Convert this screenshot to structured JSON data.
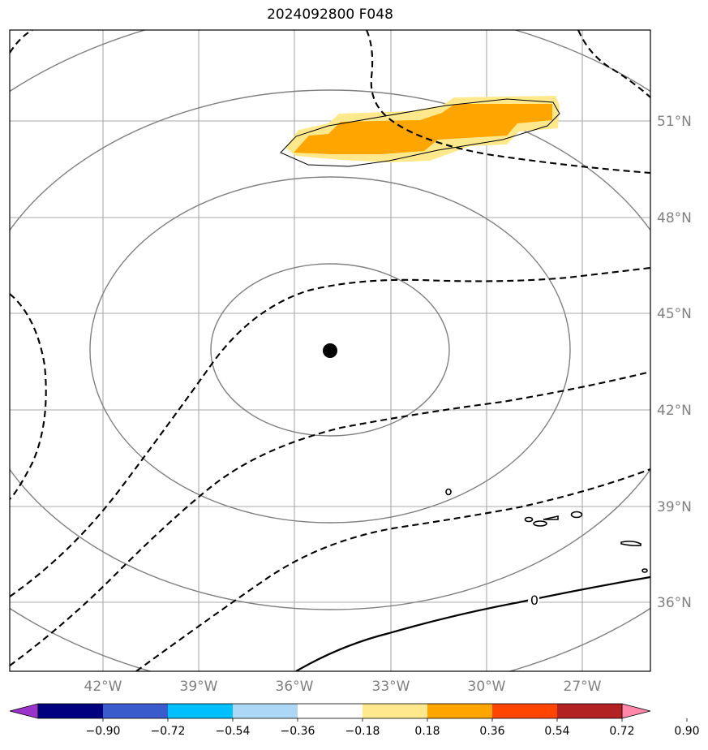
{
  "title": "2024092800 F048",
  "map": {
    "lon_labels": [
      "42°W",
      "39°W",
      "36°W",
      "33°W",
      "30°W",
      "27°W"
    ],
    "lat_labels": [
      "51°N",
      "48°N",
      "45°N",
      "42°N",
      "39°N",
      "36°N"
    ],
    "contour_zero_label": "0",
    "center_marker": {
      "lon": -35.0,
      "lat": 43.8
    }
  },
  "colorbar": {
    "tick_labels": [
      "−0.90",
      "−0.72",
      "−0.54",
      "−0.36",
      "−0.18",
      "0.18",
      "0.36",
      "0.54",
      "0.72",
      "0.90"
    ],
    "colors": [
      "#9933cc",
      "#000080",
      "#3a5bcc",
      "#00bfff",
      "#add8f5",
      "#ffffff",
      "#ffe98c",
      "#ffa500",
      "#ff4500",
      "#b22222",
      "#ff88aa"
    ]
  }
}
